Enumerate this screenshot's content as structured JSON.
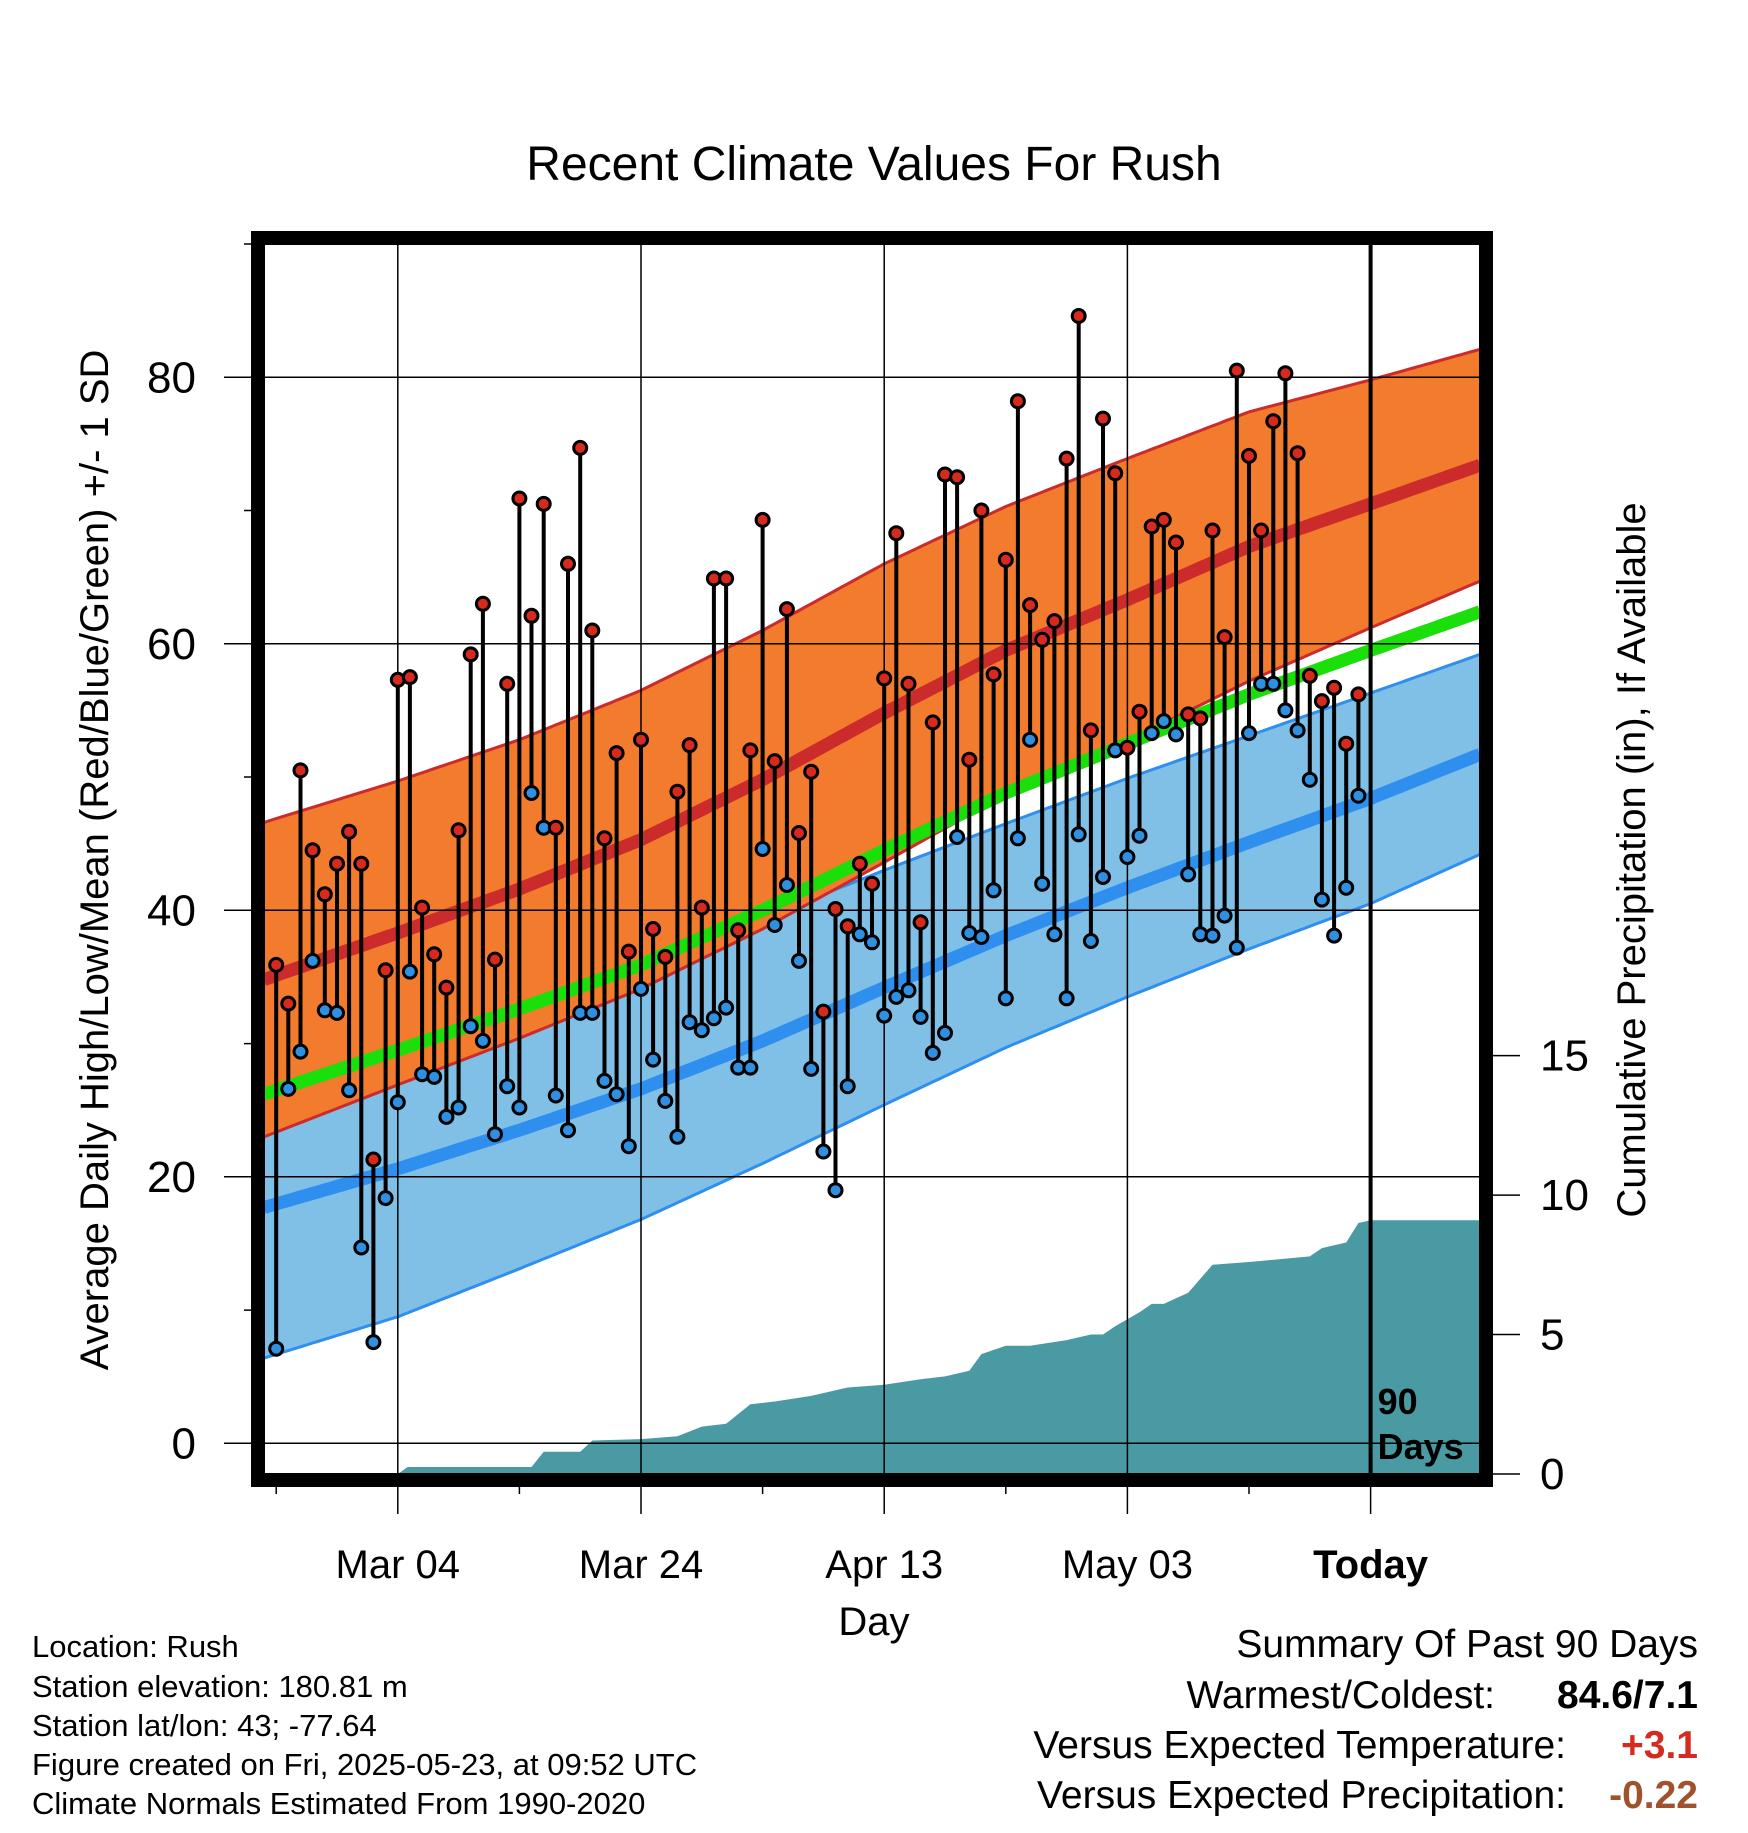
{
  "chart_data": {
    "type": "line",
    "title": "Recent Climate Values For Rush",
    "xlabel": "Day",
    "ylabel_left": "Average Daily High/Low/Mean (Red/Blue/Green) +/- 1 SD",
    "ylabel_right": "Cumulative Precipitation (in), If Available",
    "x_range": [
      -11,
      89
    ],
    "ylim_left": [
      -2.3,
      90
    ],
    "ylim_right": [
      0,
      44.1
    ],
    "x_ticks": [
      {
        "x": 0,
        "label": "Mar 04"
      },
      {
        "x": 20,
        "label": "Mar 24"
      },
      {
        "x": 40,
        "label": "Apr 13"
      },
      {
        "x": 60,
        "label": "May 03"
      },
      {
        "x": 80,
        "label": "Today"
      }
    ],
    "y_ticks_left": [
      {
        "v": 0,
        "label": "0"
      },
      {
        "v": 20,
        "label": "20"
      },
      {
        "v": 40,
        "label": "40"
      },
      {
        "v": 60,
        "label": "60"
      },
      {
        "v": 80,
        "label": "80"
      }
    ],
    "y_ticks_right": [
      {
        "v": 0,
        "label": "0"
      },
      {
        "v": 5,
        "label": "5"
      },
      {
        "v": 10,
        "label": "10"
      },
      {
        "v": 15,
        "label": "15"
      }
    ],
    "today_x": 80,
    "today_annotation": [
      "90",
      "Days"
    ],
    "grid": true,
    "normals": {
      "x": [
        -11,
        0,
        10,
        20,
        30,
        40,
        50,
        60,
        70,
        80,
        89
      ],
      "high_mean": [
        34.8,
        38.3,
        41.6,
        45.3,
        49.8,
        54.8,
        59.5,
        63.3,
        67.3,
        70.5,
        73.4
      ],
      "high_sd": [
        11.8,
        11.4,
        11.2,
        11.2,
        11.2,
        11.2,
        10.8,
        10.6,
        10.1,
        9.3,
        8.7
      ],
      "low_mean": [
        17.7,
        20.6,
        23.5,
        26.6,
        30.2,
        34.2,
        38.1,
        41.7,
        45.1,
        48.4,
        51.7
      ],
      "low_sd": [
        11.3,
        11.1,
        10.4,
        9.8,
        9.2,
        8.8,
        8.4,
        8.2,
        8.0,
        7.9,
        7.5
      ],
      "mean_mean": [
        26.2,
        29.5,
        32.6,
        35.9,
        40.0,
        44.5,
        48.8,
        52.5,
        56.2,
        59.5,
        62.4
      ]
    },
    "colors": {
      "high_band": "#f37b2d",
      "high_line": "#cc2b2b",
      "low_band": "#80c0e6",
      "low_line": "#2f8fee",
      "mean_line": "#1adf0a",
      "precip": "#4a9aa4",
      "high_marker": "#d62a1e",
      "low_marker": "#2f8fe0"
    },
    "daily": {
      "start_x": -10,
      "high": [
        35.9,
        33.0,
        50.5,
        44.5,
        41.2,
        43.5,
        45.9,
        43.5,
        21.3,
        35.5,
        57.3,
        57.5,
        40.2,
        36.7,
        34.2,
        46.0,
        59.2,
        63.0,
        36.3,
        57.0,
        70.9,
        62.1,
        70.5,
        46.2,
        66.0,
        74.7,
        61.0,
        45.4,
        51.8,
        36.9,
        52.8,
        38.6,
        36.5,
        48.9,
        52.4,
        40.2,
        64.9,
        64.9,
        38.5,
        52.0,
        69.3,
        51.2,
        62.6,
        45.8,
        50.4,
        32.4,
        40.1,
        38.8,
        43.5,
        42.0,
        57.4,
        68.3,
        57.0,
        39.1,
        54.1,
        72.7,
        72.5,
        51.3,
        70.0,
        57.7,
        66.3,
        78.2,
        62.9,
        60.3,
        61.7,
        73.9,
        84.6,
        53.5,
        76.9,
        72.8,
        52.2,
        54.9,
        68.8,
        69.3,
        67.6,
        54.7,
        54.4,
        68.5,
        60.5,
        80.5,
        74.1,
        68.5,
        76.7,
        80.3,
        74.3,
        57.6,
        55.7,
        56.7,
        52.5,
        56.2
      ],
      "low": [
        7.1,
        26.6,
        29.4,
        36.2,
        32.5,
        32.3,
        26.5,
        14.7,
        7.6,
        18.4,
        25.6,
        35.4,
        27.7,
        27.5,
        24.5,
        25.2,
        31.3,
        30.2,
        23.2,
        26.8,
        25.2,
        48.8,
        46.2,
        26.1,
        23.5,
        32.3,
        32.3,
        27.2,
        26.2,
        22.3,
        34.1,
        28.8,
        25.7,
        23.0,
        31.6,
        31.0,
        31.9,
        32.7,
        28.2,
        28.2,
        44.6,
        38.9,
        41.9,
        36.2,
        28.1,
        21.9,
        19.0,
        26.8,
        38.2,
        37.6,
        32.1,
        33.5,
        34.0,
        32.0,
        29.3,
        30.8,
        45.5,
        38.3,
        38.0,
        41.5,
        33.4,
        45.4,
        52.8,
        42.0,
        38.2,
        33.4,
        45.7,
        37.7,
        42.5,
        52.0,
        44.0,
        45.6,
        53.3,
        54.2,
        53.2,
        42.7,
        38.2,
        38.1,
        39.6,
        37.2,
        53.3,
        57.0,
        57.0,
        55.0,
        53.5,
        49.8,
        40.8,
        38.1,
        41.7,
        48.6
      ]
    },
    "precip": {
      "x": [
        -11,
        0,
        0.8,
        11,
        12,
        15,
        16,
        20,
        23,
        25,
        27,
        29,
        31,
        34,
        37,
        40,
        43,
        45,
        47,
        48,
        50,
        52,
        55,
        57,
        58,
        59,
        61,
        62,
        63,
        65,
        67,
        70,
        75,
        76,
        77,
        78,
        79,
        80,
        89
      ],
      "cum": [
        0,
        0,
        0.25,
        0.25,
        0.8,
        0.8,
        1.2,
        1.25,
        1.35,
        1.7,
        1.8,
        2.5,
        2.6,
        2.8,
        3.1,
        3.2,
        3.4,
        3.5,
        3.7,
        4.3,
        4.6,
        4.6,
        4.8,
        5.0,
        5.0,
        5.3,
        5.8,
        6.1,
        6.1,
        6.5,
        7.5,
        7.6,
        7.8,
        8.1,
        8.2,
        8.3,
        9.0,
        9.1,
        9.1
      ]
    }
  },
  "info": [
    "Location: Rush",
    "Station elevation: 180.81 m",
    "Station lat/lon: 43; -77.64",
    "Figure created on Fri, 2025-05-23, at 09:52 UTC",
    "Climate Normals Estimated From 1990-2020"
  ],
  "summary": {
    "title": "Summary Of Past 90 Days",
    "warmest_label": "Warmest/Coldest:",
    "warmest_value": "84.6/7.1",
    "temp_label": "Versus Expected Temperature:",
    "temp_value": "+3.1",
    "temp_color": "#d62a1e",
    "precip_label": "Versus Expected Precipitation:",
    "precip_value": "-0.22",
    "precip_color": "#a0522d"
  }
}
